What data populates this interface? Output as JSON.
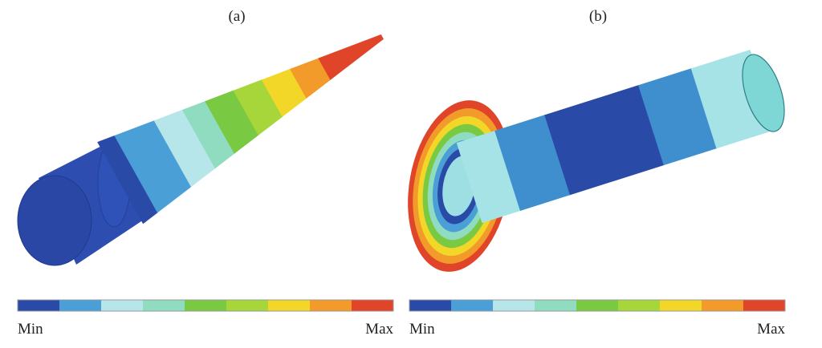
{
  "panels": [
    {
      "label": "(a)",
      "legend": {
        "min": "Min",
        "max": "Max"
      }
    },
    {
      "label": "(b)",
      "legend": {
        "min": "Min",
        "max": "Max"
      }
    }
  ]
}
